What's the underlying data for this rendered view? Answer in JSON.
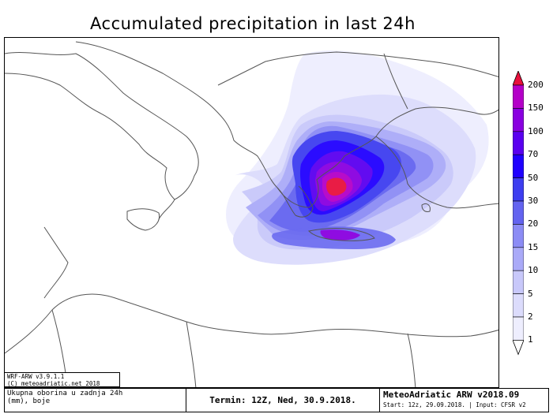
{
  "title": "Accumulated precipitation in last 24h",
  "colorbar": {
    "labels": [
      "200",
      "150",
      "100",
      "70",
      "50",
      "30",
      "20",
      "15",
      "10",
      "5",
      "2",
      "1"
    ],
    "colors": [
      "#e8103c",
      "#b400c8",
      "#8a00e0",
      "#5a00f0",
      "#2000ff",
      "#3e3ef0",
      "#6464f0",
      "#8c8cf5",
      "#aaaaf8",
      "#c8c8fa",
      "#dcdcfc",
      "#eeeefe",
      "#ffffff"
    ]
  },
  "info_box": {
    "line1": "WRF-ARW v3.9.1.1",
    "line2": "(C) meteoadriatic.net 2018"
  },
  "footer": {
    "desc_line1": "Ukupna oborina u zadnja 24h",
    "desc_line2": "(mm), boje",
    "termin": "Termin: 12Z, Ned, 30.9.2018.",
    "model": "MeteoAdriatic ARW v2018.09",
    "start": "Start: 12z, 29.09.2018. | Input: CFSR v2"
  }
}
